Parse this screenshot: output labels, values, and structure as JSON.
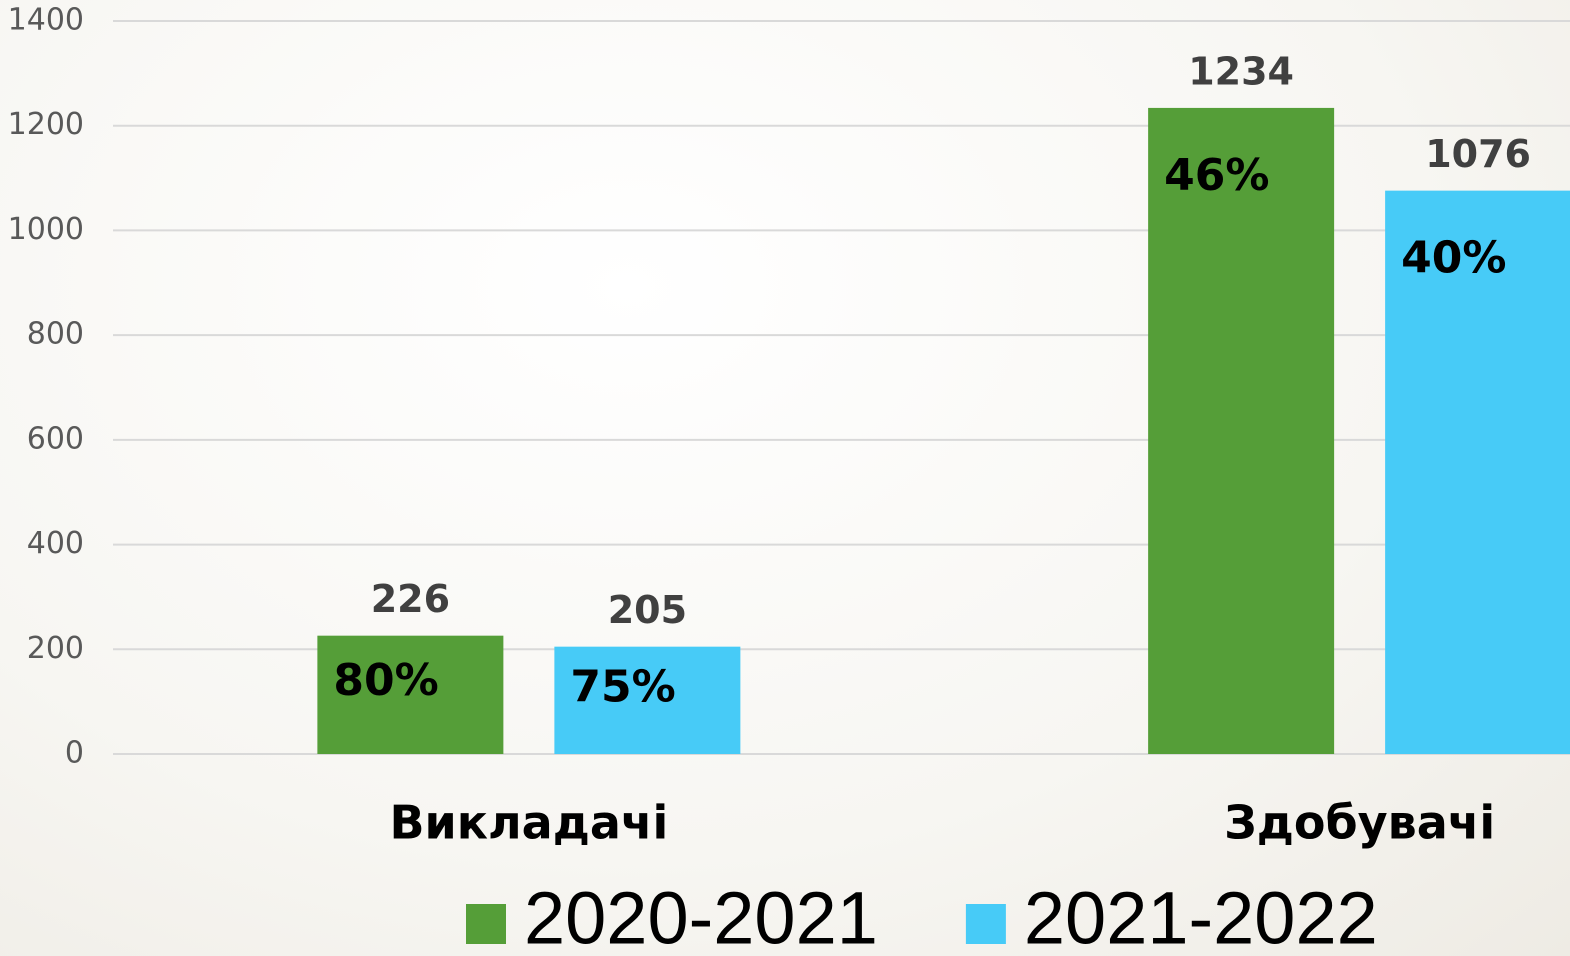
{
  "chart_data": {
    "type": "bar",
    "categories": [
      "Викладачі",
      "Здобувачі"
    ],
    "series": [
      {
        "name": "2020-2021",
        "color": "#559e38",
        "values": [
          226,
          1234
        ],
        "inner_labels": [
          "80%",
          "46%"
        ]
      },
      {
        "name": "2021-2022",
        "color": "#47cbf7",
        "values": [
          205,
          1076
        ],
        "inner_labels": [
          "75%",
          "40%"
        ]
      }
    ],
    "ylim": [
      0,
      1400
    ],
    "yticks": [
      0,
      200,
      400,
      600,
      800,
      1000,
      1200,
      1400
    ],
    "grid": true,
    "legend": "bottom"
  }
}
